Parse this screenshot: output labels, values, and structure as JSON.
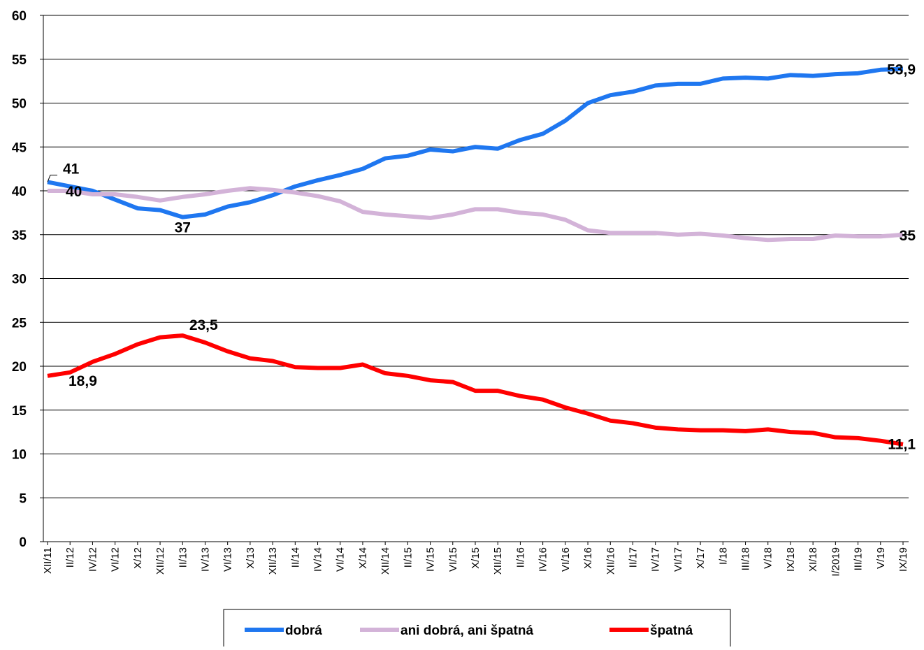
{
  "chart_data": {
    "type": "line",
    "categories": [
      "XII/11",
      "II/12",
      "IV/12",
      "VI/12",
      "X/12",
      "XII/12",
      "II/13",
      "IV/13",
      "VI/13",
      "X/13",
      "XII/13",
      "II/14",
      "IV/14",
      "VI/14",
      "X/14",
      "XII/14",
      "II/15",
      "IV/15",
      "VI/15",
      "X/15",
      "XII/15",
      "II/16",
      "IV/16",
      "VI/16",
      "X/16",
      "XII/16",
      "II/17",
      "IV/17",
      "VI/17",
      "X/17",
      "I/18",
      "III/18",
      "V/18",
      "IX/18",
      "XI/18",
      "I/2019",
      "III/19",
      "V/19",
      "IX/19"
    ],
    "series": [
      {
        "name": "dobrá",
        "color": "#1f77f0",
        "values": [
          41,
          40.5,
          40,
          39,
          38,
          37.8,
          37,
          37.3,
          38.2,
          38.7,
          39.5,
          40.5,
          41.2,
          41.8,
          42.5,
          43.7,
          44,
          44.7,
          44.5,
          45,
          44.8,
          45.8,
          46.5,
          48,
          50,
          50.9,
          51.3,
          52,
          52.2,
          52.2,
          52.8,
          52.9,
          52.8,
          53.2,
          53.1,
          53.3,
          53.4,
          53.8,
          53.9
        ],
        "value_labels": [
          "41",
          null,
          null,
          null,
          null,
          null,
          "37",
          null,
          null,
          null,
          null,
          null,
          null,
          null,
          null,
          null,
          null,
          null,
          null,
          null,
          null,
          null,
          null,
          null,
          null,
          null,
          null,
          null,
          null,
          null,
          null,
          null,
          null,
          null,
          null,
          null,
          null,
          null,
          "53,9"
        ]
      },
      {
        "name": "ani dobrá, ani špatná",
        "color": "#d3b3d8",
        "values": [
          40,
          40,
          39.6,
          39.6,
          39.3,
          38.9,
          39.3,
          39.6,
          40,
          40.3,
          40.1,
          39.8,
          39.4,
          38.8,
          37.6,
          37.3,
          37.1,
          36.9,
          37.3,
          37.9,
          37.9,
          37.5,
          37.3,
          36.7,
          35.5,
          35.2,
          35.2,
          35.2,
          35,
          35.1,
          34.9,
          34.6,
          34.4,
          34.5,
          34.5,
          34.9,
          34.8,
          34.8,
          35
        ],
        "value_labels": [
          "40",
          null,
          null,
          null,
          null,
          null,
          null,
          null,
          null,
          null,
          null,
          null,
          null,
          null,
          null,
          null,
          null,
          null,
          null,
          null,
          null,
          null,
          null,
          null,
          null,
          null,
          null,
          null,
          null,
          null,
          null,
          null,
          null,
          null,
          null,
          null,
          null,
          null,
          "35"
        ]
      },
      {
        "name": "špatná",
        "color": "#ff0000",
        "values": [
          18.9,
          19.3,
          20.5,
          21.4,
          22.5,
          23.3,
          23.5,
          22.7,
          21.7,
          20.9,
          20.6,
          19.9,
          19.8,
          19.8,
          20.2,
          19.2,
          18.9,
          18.4,
          18.2,
          17.2,
          17.2,
          16.6,
          16.2,
          15.3,
          14.6,
          13.8,
          13.5,
          13,
          12.8,
          12.7,
          12.7,
          12.6,
          12.8,
          12.5,
          12.4,
          11.9,
          11.8,
          11.5,
          11.1
        ],
        "value_labels": [
          "18,9",
          null,
          null,
          null,
          null,
          null,
          "23,5",
          null,
          null,
          null,
          null,
          null,
          null,
          null,
          null,
          null,
          null,
          null,
          null,
          null,
          null,
          null,
          null,
          null,
          null,
          null,
          null,
          null,
          null,
          null,
          null,
          null,
          null,
          null,
          null,
          null,
          null,
          null,
          "11,1"
        ]
      }
    ],
    "ylim": [
      0,
      60
    ],
    "yticks": [
      0,
      5,
      10,
      15,
      20,
      25,
      30,
      35,
      40,
      45,
      50,
      55,
      60
    ],
    "grid": true,
    "legend": "bottom"
  }
}
